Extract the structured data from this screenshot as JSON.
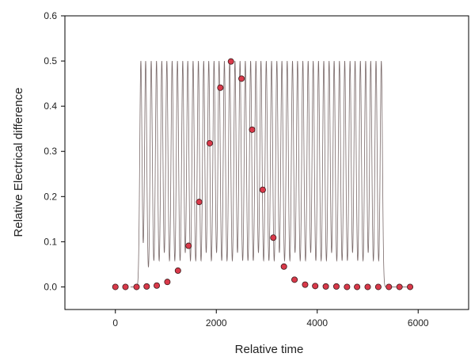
{
  "chart_data": {
    "type": "scatter",
    "title": "",
    "xlabel": "Relative time",
    "ylabel": "Relative Electrical difference",
    "xlim": [
      -1000,
      7000
    ],
    "ylim": [
      -0.05,
      0.6
    ],
    "x_ticks": [
      0,
      2000,
      4000,
      6000
    ],
    "y_ticks": [
      0.0,
      0.1,
      0.2,
      0.3,
      0.4,
      0.5,
      0.6
    ],
    "x_tick_labels": [
      "0",
      "2000",
      "4000",
      "6000"
    ],
    "y_tick_labels": [
      "0.0",
      "0.1",
      "0.2",
      "0.3",
      "0.4",
      "0.5",
      "0.6"
    ],
    "grid": false,
    "legend": "none",
    "series": [
      {
        "kind": "line",
        "pulse_peak": 0.5,
        "pulse_baseline": 0.0,
        "pulse_centers": [
          505,
          600,
          710,
          815,
          920,
          1020,
          1125,
          1230,
          1335,
          1435,
          1540,
          1645,
          1750,
          1850,
          1955,
          2055,
          2160,
          2265,
          2370,
          2470,
          2575,
          2680,
          2785,
          2885,
          2990,
          3095,
          3200,
          3300,
          3405,
          3510,
          3610,
          3715,
          3820,
          3920,
          4025,
          4130,
          4235,
          4335,
          4440,
          4545,
          4650,
          4750,
          4855,
          4960,
          5060,
          5165,
          5270
        ],
        "baseline_x_range": [
          300,
          5900
        ],
        "color": "#7a6a6a"
      },
      {
        "kind": "points",
        "x": [
          0,
          200,
          420,
          620,
          820,
          1030,
          1240,
          1450,
          1660,
          1870,
          2080,
          2290,
          2500,
          2710,
          2920,
          3130,
          3340,
          3550,
          3760,
          3960,
          4170,
          4380,
          4590,
          4790,
          5000,
          5210,
          5420,
          5630,
          5840
        ],
        "y": [
          0.0,
          0.0,
          0.0,
          0.001,
          0.003,
          0.011,
          0.036,
          0.091,
          0.188,
          0.318,
          0.441,
          0.499,
          0.461,
          0.348,
          0.215,
          0.109,
          0.045,
          0.016,
          0.005,
          0.002,
          0.001,
          0.001,
          0.0,
          0.0,
          0.0,
          0.0,
          0.0,
          0.0,
          0.0
        ],
        "color": "#d9394a",
        "edge_color": "#3a1a1a"
      }
    ]
  }
}
